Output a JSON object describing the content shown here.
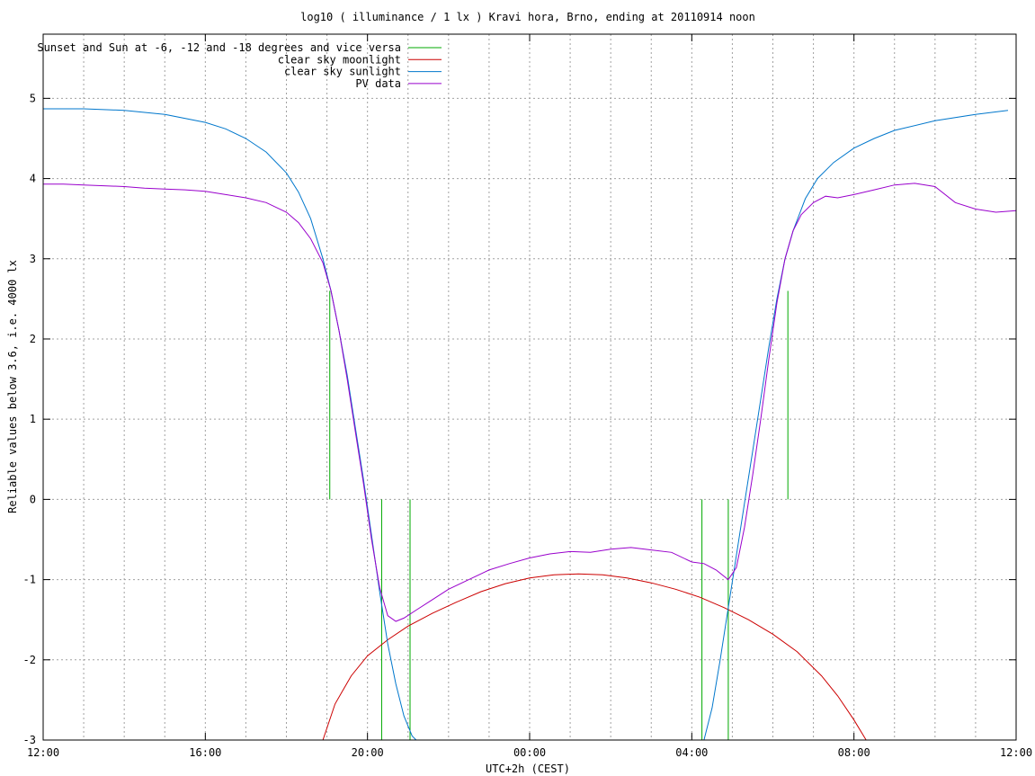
{
  "chart_data": {
    "type": "line",
    "title": "log10 ( illuminance / 1 lx ) Kravi hora, Brno, ending at 20110914 noon",
    "xlabel": "UTC+2h (CEST)",
    "ylabel": "Reliable values below 3.6, i.e. 4000 lx",
    "xlim": [
      0,
      24
    ],
    "ylim": [
      -3,
      5.8
    ],
    "x_ticks": [
      {
        "at": 0,
        "label": "12:00"
      },
      {
        "at": 4,
        "label": "16:00"
      },
      {
        "at": 8,
        "label": "20:00"
      },
      {
        "at": 12,
        "label": "00:00"
      },
      {
        "at": 16,
        "label": "04:00"
      },
      {
        "at": 20,
        "label": "08:00"
      },
      {
        "at": 24,
        "label": "12:00"
      }
    ],
    "y_ticks": [
      {
        "at": 5,
        "label": "5"
      },
      {
        "at": 4,
        "label": "4"
      },
      {
        "at": 3,
        "label": "3"
      },
      {
        "at": 2,
        "label": "2"
      },
      {
        "at": 1,
        "label": "1"
      },
      {
        "at": 0,
        "label": "0"
      },
      {
        "at": -1,
        "label": "-1"
      },
      {
        "at": -2,
        "label": "-2"
      },
      {
        "at": -3,
        "label": "-3"
      }
    ],
    "grid": true,
    "legend_position": "top-left",
    "series": [
      {
        "name": "Sunset and Sun at -6, -12 and -18 degrees and vice versa",
        "color": "#00aa00",
        "style": "vertical-markers",
        "markers": [
          {
            "x": 7.07,
            "y0": 0,
            "y1": 2.6
          },
          {
            "x": 8.35,
            "y0": -3,
            "y1": 0
          },
          {
            "x": 9.05,
            "y0": -3,
            "y1": 0
          },
          {
            "x": 16.25,
            "y0": -3,
            "y1": 0
          },
          {
            "x": 16.9,
            "y0": -3,
            "y1": 0
          },
          {
            "x": 18.37,
            "y0": 0,
            "y1": 2.6
          }
        ]
      },
      {
        "name": "clear sky moonlight",
        "color": "#cc0000",
        "x": [
          6.9,
          7.2,
          7.6,
          8.0,
          8.5,
          9.0,
          9.6,
          10.2,
          10.8,
          11.4,
          12.0,
          12.6,
          13.2,
          13.8,
          14.4,
          15.0,
          15.6,
          16.2,
          16.8,
          17.4,
          18.0,
          18.6,
          19.2,
          19.6,
          20.0,
          20.3
        ],
        "y": [
          -3.0,
          -2.55,
          -2.2,
          -1.95,
          -1.75,
          -1.58,
          -1.42,
          -1.28,
          -1.15,
          -1.05,
          -0.98,
          -0.94,
          -0.93,
          -0.94,
          -0.98,
          -1.04,
          -1.12,
          -1.22,
          -1.35,
          -1.5,
          -1.68,
          -1.9,
          -2.2,
          -2.45,
          -2.75,
          -3.0
        ]
      },
      {
        "name": "clear sky sunlight",
        "color": "#0077cc",
        "x": [
          0,
          1.0,
          2.0,
          3.0,
          4.0,
          4.5,
          5.0,
          5.5,
          6.0,
          6.3,
          6.6,
          6.9,
          7.1,
          7.3,
          7.5,
          7.7,
          7.9,
          8.1,
          8.3,
          8.5,
          8.7,
          8.9,
          9.1,
          9.2,
          16.3,
          16.5,
          16.7,
          16.9,
          17.1,
          17.3,
          17.5,
          17.7,
          17.9,
          18.1,
          18.3,
          18.5,
          18.8,
          19.1,
          19.5,
          20.0,
          20.5,
          21.0,
          22.0,
          23.0,
          23.8
        ],
        "y": [
          4.87,
          4.87,
          4.85,
          4.8,
          4.7,
          4.62,
          4.5,
          4.33,
          4.07,
          3.83,
          3.5,
          3.0,
          2.6,
          2.1,
          1.55,
          0.9,
          0.25,
          -0.45,
          -1.15,
          -1.8,
          -2.3,
          -2.7,
          -2.95,
          -3.0,
          -3.0,
          -2.6,
          -2.0,
          -1.35,
          -0.7,
          -0.05,
          0.6,
          1.25,
          1.9,
          2.5,
          3.0,
          3.35,
          3.75,
          4.0,
          4.2,
          4.38,
          4.5,
          4.6,
          4.72,
          4.8,
          4.85
        ]
      },
      {
        "name": "PV data",
        "color": "#9900cc",
        "x": [
          0,
          0.5,
          1.0,
          1.5,
          2.0,
          2.5,
          3.0,
          3.5,
          4.0,
          4.5,
          5.0,
          5.5,
          6.0,
          6.3,
          6.6,
          6.9,
          7.1,
          7.3,
          7.5,
          7.7,
          7.9,
          8.1,
          8.3,
          8.5,
          8.7,
          8.9,
          9.2,
          9.6,
          10.0,
          10.5,
          11.0,
          11.5,
          12.0,
          12.5,
          13.0,
          13.5,
          14.0,
          14.5,
          15.0,
          15.5,
          16.0,
          16.3,
          16.6,
          16.9,
          17.1,
          17.3,
          17.5,
          17.7,
          17.9,
          18.1,
          18.3,
          18.5,
          18.7,
          19.0,
          19.3,
          19.6,
          20.0,
          20.5,
          21.0,
          21.5,
          22.0,
          22.5,
          23.0,
          23.5,
          24.0
        ],
        "y": [
          3.93,
          3.93,
          3.92,
          3.91,
          3.9,
          3.88,
          3.87,
          3.86,
          3.84,
          3.8,
          3.76,
          3.7,
          3.58,
          3.45,
          3.25,
          2.95,
          2.6,
          2.1,
          1.5,
          0.85,
          0.2,
          -0.5,
          -1.1,
          -1.45,
          -1.52,
          -1.48,
          -1.38,
          -1.25,
          -1.12,
          -1.0,
          -0.88,
          -0.8,
          -0.73,
          -0.68,
          -0.65,
          -0.66,
          -0.62,
          -0.6,
          -0.63,
          -0.66,
          -0.78,
          -0.8,
          -0.88,
          -1.0,
          -0.85,
          -0.35,
          0.3,
          1.0,
          1.75,
          2.45,
          3.0,
          3.35,
          3.55,
          3.7,
          3.78,
          3.76,
          3.8,
          3.86,
          3.92,
          3.94,
          3.9,
          3.7,
          3.62,
          3.58,
          3.6
        ]
      }
    ]
  }
}
